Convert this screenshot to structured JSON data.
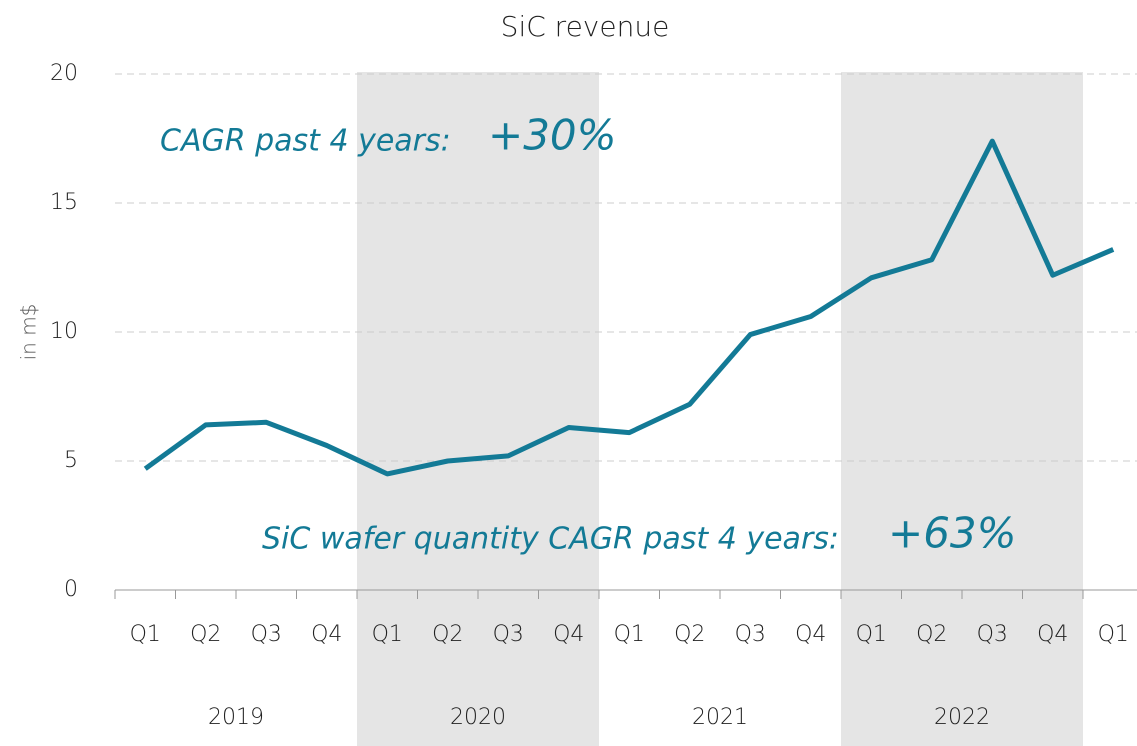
{
  "chart_data": {
    "type": "line",
    "title": "SiC revenue",
    "y_label": "in m$",
    "categories": [
      "Q1",
      "Q2",
      "Q3",
      "Q4",
      "Q1",
      "Q2",
      "Q3",
      "Q4",
      "Q1",
      "Q2",
      "Q3",
      "Q4",
      "Q1",
      "Q2",
      "Q3",
      "Q4",
      "Q1"
    ],
    "years": [
      "2019",
      "2020",
      "2021",
      "2022"
    ],
    "values": [
      4.7,
      6.4,
      6.5,
      5.6,
      4.5,
      5.0,
      5.2,
      6.3,
      6.1,
      7.2,
      9.9,
      10.6,
      12.1,
      12.8,
      17.4,
      12.2,
      13.2
    ],
    "color": "#137a96",
    "ylim": [
      0,
      20
    ],
    "yticks": [
      0,
      5,
      10,
      15,
      20
    ],
    "grid": true,
    "annotations": [
      {
        "text": "CAGR past 4 years:",
        "highlight": "+30%"
      },
      {
        "text": "SiC wafer quantity CAGR past 4 years:",
        "highlight": "+63%"
      }
    ]
  }
}
